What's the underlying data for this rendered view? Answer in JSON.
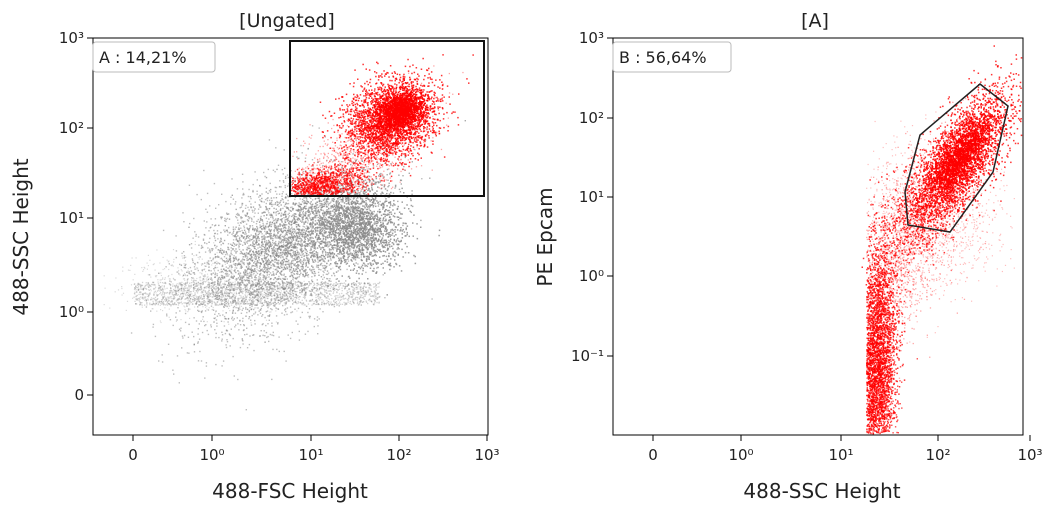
{
  "chart_data": [
    {
      "type": "scatter",
      "title": "[Ungated]",
      "xlabel": "488-FSC Height",
      "ylabel": "488-SSC Height",
      "x_scale": "biexponential",
      "y_scale": "biexponential",
      "x_ticks": [
        "0",
        "10⁰",
        "10¹",
        "10²",
        "10³"
      ],
      "y_ticks": [
        "0",
        "10⁰",
        "10¹",
        "10²",
        "10³"
      ],
      "gate": {
        "label": "A : 14,21%",
        "shape": "rectangle",
        "x_range": [
          6,
          900
        ],
        "y_range": [
          18,
          1000
        ]
      },
      "series": [
        {
          "color": "#888888",
          "regions": [
            {
              "x_range": [
                0,
                60
              ],
              "y_range": [
                1.2,
                2
              ]
            },
            {
              "x_range": [
                2,
                40
              ],
              "y_range": [
                1.5,
                18
              ]
            },
            {
              "x_range": [
                30,
                80
              ],
              "y_range": [
                3,
                15
              ]
            }
          ]
        },
        {
          "color": "#ff0000",
          "regions": [
            {
              "x_range": [
                6,
                30
              ],
              "y_range": [
                18,
                40
              ]
            },
            {
              "x_range": [
                40,
                250
              ],
              "y_range": [
                40,
                300
              ]
            }
          ]
        }
      ]
    },
    {
      "type": "scatter",
      "title": "[A]",
      "xlabel": "488-SSC Height",
      "ylabel": "PE Epcam",
      "x_scale": "biexponential",
      "y_scale": "biexponential",
      "x_ticks": [
        "0",
        "10⁰",
        "10¹",
        "10²",
        "10³"
      ],
      "y_ticks": [
        "10⁻¹",
        "10⁰",
        "10¹",
        "10²",
        "10³"
      ],
      "gate": {
        "label": "B : 56,64%",
        "shape": "polygon",
        "vertices": [
          [
            45,
            15
          ],
          [
            60,
            4.5
          ],
          [
            130,
            3.6
          ],
          [
            360,
            20
          ],
          [
            560,
            140
          ],
          [
            280,
            280
          ],
          [
            120,
            80
          ],
          [
            45,
            12
          ]
        ]
      },
      "series": [
        {
          "color": "#ff0000",
          "regions": [
            {
              "x_range": [
                18,
                40
              ],
              "y_range": [
                0.02,
                2
              ]
            },
            {
              "x_range": [
                30,
                100
              ],
              "y_range": [
                0.3,
                8
              ]
            },
            {
              "x_range": [
                70,
                350
              ],
              "y_range": [
                5,
                150
              ]
            }
          ]
        }
      ]
    }
  ]
}
